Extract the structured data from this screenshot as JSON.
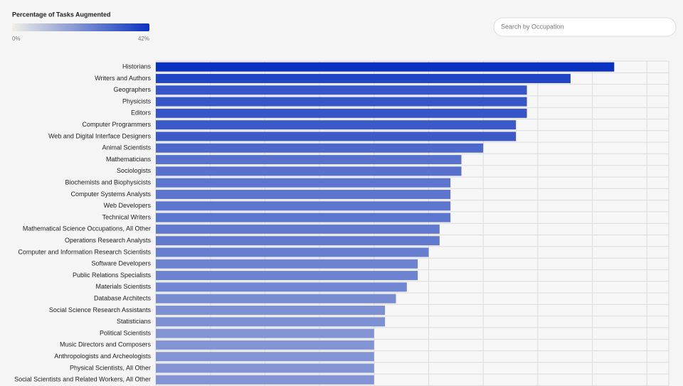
{
  "chart_data": {
    "type": "bar",
    "orientation": "horizontal",
    "legend": {
      "title": "Percentage of Tasks Augmented",
      "min": {
        "value": 0,
        "label": "0%"
      },
      "max": {
        "value": 42,
        "label": "42%"
      },
      "colors": [
        "#f0eee6",
        "#0a32c0"
      ]
    },
    "search_placeholder": "Search by Occupation",
    "categories": [
      "Historians",
      "Writers and Authors",
      "Geographers",
      "Physicists",
      "Editors",
      "Computer Programmers",
      "Web and Digital Interface Designers",
      "Animal Scientists",
      "Mathematicians",
      "Sociologists",
      "Biochemists and Biophysicists",
      "Computer Systems Analysts",
      "Web Developers",
      "Technical Writers",
      "Mathematical Science Occupations, All Other",
      "Operations Research Analysts",
      "Computer and Information Research Scientists",
      "Software Developers",
      "Public Relations Specialists",
      "Materials Scientists",
      "Database Architects",
      "Social Science Research Assistants",
      "Statisticians",
      "Political Scientists",
      "Music Directors and Composers",
      "Anthropologists and Archeologists",
      "Physical Scientists, All Other",
      "Social Scientists and Related Workers, All Other"
    ],
    "values": [
      42,
      38,
      34,
      34,
      34,
      33,
      33,
      30,
      28,
      28,
      27,
      27,
      27,
      27,
      26,
      26,
      25,
      24,
      24,
      23,
      22,
      21,
      21,
      20,
      20,
      20,
      20,
      20
    ],
    "xlim": [
      0,
      47
    ],
    "xticks": [
      0,
      5,
      10,
      15,
      20,
      25,
      30,
      35,
      40,
      45
    ],
    "grid": true
  }
}
